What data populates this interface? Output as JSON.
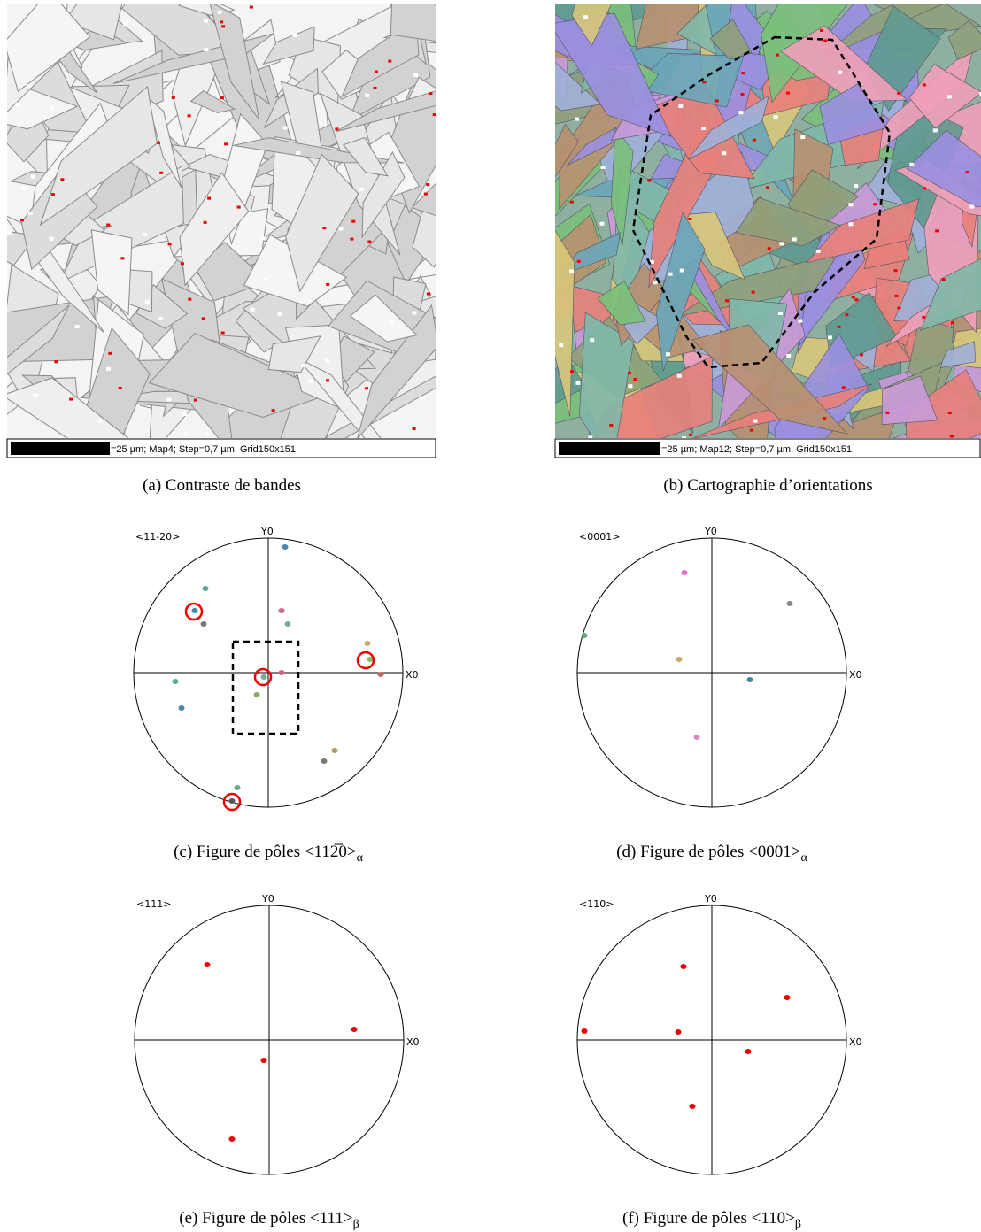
{
  "panels": [
    {
      "scale_text": "=25 µm; Map4; Step=0,7 µm; Grid150x151",
      "caption": "(a) Contraste de bandes"
    },
    {
      "scale_text": "=25 µm; Map12; Step=0,7 µm; Grid150x151",
      "caption": "(b) Cartographie d’orientations"
    }
  ],
  "pole_figures": [
    {
      "direction": "<11-20>",
      "y_axis": "Y0",
      "x_axis": "X0",
      "caption": "(c) Figure de pôles <112̅0>",
      "sub": "α"
    },
    {
      "direction": "<0001>",
      "y_axis": "Y0",
      "x_axis": "X0",
      "caption": "(d) Figure de pôles <0001>",
      "sub": "α"
    },
    {
      "direction": "<111>",
      "y_axis": "Y0",
      "x_axis": "X0",
      "caption": "(e) Figure de pôles <111>",
      "sub": "β"
    },
    {
      "direction": "<110>",
      "y_axis": "Y0",
      "x_axis": "X0",
      "caption": "(f) Figure de pôles <110>",
      "sub": "β"
    }
  ]
}
